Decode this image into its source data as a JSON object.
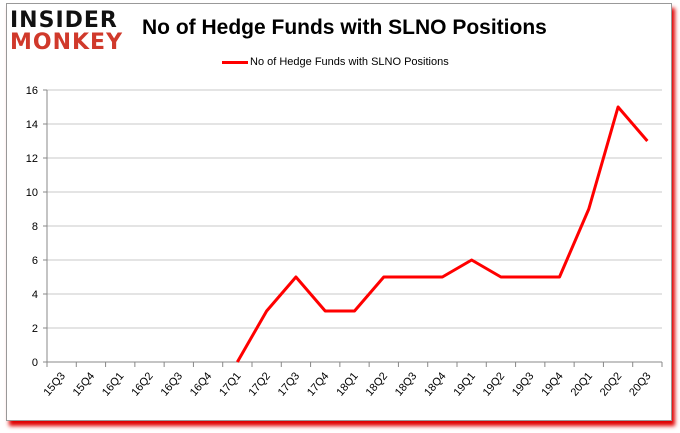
{
  "logo": {
    "line1": "INSIDER",
    "line2": "MONKEY"
  },
  "chart_data": {
    "type": "line",
    "title": "No of Hedge Funds with SLNO Positions",
    "xlabel": "",
    "ylabel": "",
    "categories": [
      "15Q3",
      "15Q4",
      "16Q1",
      "16Q2",
      "16Q3",
      "16Q4",
      "17Q1",
      "17Q2",
      "17Q3",
      "17Q4",
      "18Q1",
      "18Q2",
      "18Q3",
      "18Q4",
      "19Q1",
      "19Q2",
      "19Q3",
      "19Q4",
      "20Q1",
      "20Q2",
      "20Q3"
    ],
    "series": [
      {
        "name": "No of Hedge Funds with SLNO Positions",
        "color": "#ff0000",
        "values": [
          null,
          null,
          null,
          null,
          null,
          null,
          0,
          3,
          5,
          3,
          3,
          5,
          5,
          5,
          6,
          5,
          5,
          5,
          9,
          15,
          13
        ]
      }
    ],
    "ylim": [
      0,
      16
    ],
    "yticks": [
      0,
      2,
      4,
      6,
      8,
      10,
      12,
      14,
      16
    ],
    "grid": true,
    "legend": "top-center"
  }
}
